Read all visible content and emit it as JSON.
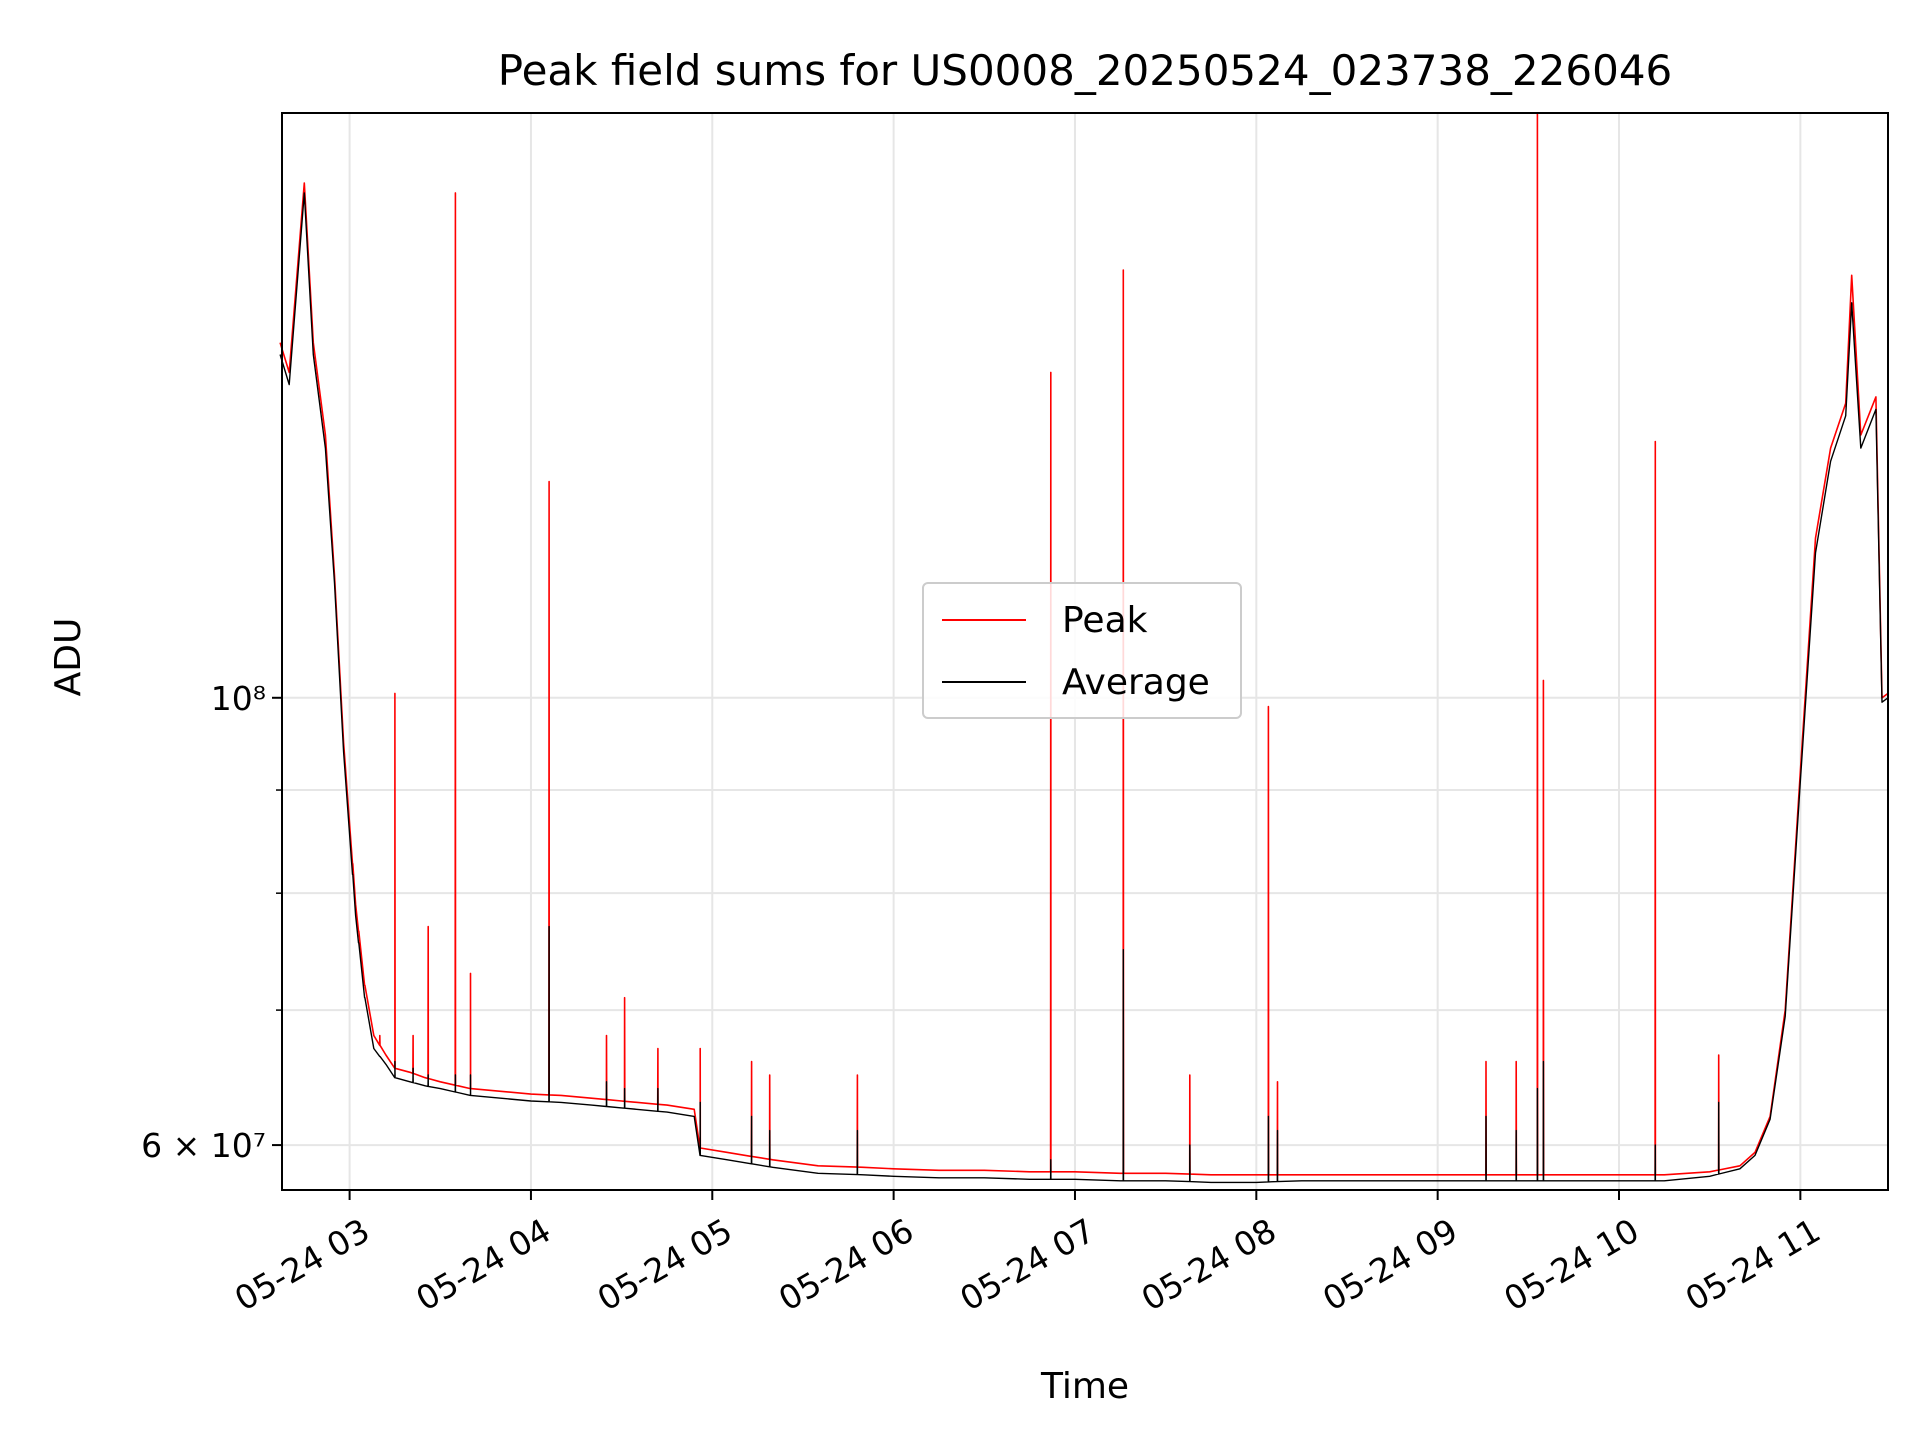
{
  "chart_data": {
    "type": "line",
    "title": "Peak field sums for US0008_20250524_023738_226046",
    "xlabel": "Time",
    "ylabel": "ADU",
    "x_axis": {
      "type": "time",
      "range": [
        "2025-05-24 02:37:38",
        "2025-05-24 11:29"
      ],
      "tick_labels": [
        "05-24 03",
        "05-24 04",
        "05-24 05",
        "05-24 06",
        "05-24 07",
        "05-24 08",
        "05-24 09",
        "05-24 10",
        "05-24 11"
      ]
    },
    "y_axis": {
      "scale": "log",
      "range": [
        57000000,
        195000000
      ],
      "major_tick_labels": [
        "6 × 10⁷",
        "10⁸"
      ],
      "major_ticks": [
        60000000,
        100000000
      ],
      "minor_ticks": [
        70000000,
        80000000,
        90000000
      ]
    },
    "grid": true,
    "legend": {
      "placement": "center"
    },
    "series": [
      {
        "name": "Peak",
        "color": "#ff0000",
        "x": [
          "02:37",
          "02:40",
          "02:45",
          "02:48",
          "02:52",
          "02:55",
          "02:58",
          "03:02",
          "03:05",
          "03:08",
          "03:12",
          "03:15",
          "03:20",
          "03:25",
          "03:30",
          "03:40",
          "03:50",
          "04:00",
          "04:10",
          "04:20",
          "04:30",
          "04:45",
          "04:54",
          "04:56",
          "05:05",
          "05:20",
          "05:35",
          "05:50",
          "06:00",
          "06:15",
          "06:30",
          "06:45",
          "07:00",
          "07:15",
          "07:30",
          "07:45",
          "08:00",
          "08:15",
          "08:30",
          "08:45",
          "09:00",
          "09:15",
          "09:30",
          "09:45",
          "10:00",
          "10:15",
          "10:30",
          "10:40",
          "10:45",
          "10:50",
          "10:55",
          "11:00",
          "11:05",
          "11:10",
          "11:15",
          "11:17",
          "11:20",
          "11:25",
          "11:27",
          "11:29"
        ],
        "y": [
          150000000,
          145000000,
          180000000,
          150000000,
          135000000,
          115000000,
          95000000,
          79000000,
          72000000,
          68000000,
          66500000,
          65500000,
          65200000,
          64800000,
          64500000,
          64000000,
          63800000,
          63600000,
          63500000,
          63300000,
          63100000,
          62800000,
          62500000,
          59800000,
          59500000,
          59000000,
          58600000,
          58500000,
          58400000,
          58300000,
          58300000,
          58200000,
          58200000,
          58100000,
          58100000,
          58000000,
          58000000,
          58000000,
          58000000,
          58000000,
          58000000,
          58000000,
          58000000,
          58000000,
          58000000,
          58000000,
          58200000,
          58600000,
          59500000,
          62000000,
          70000000,
          92000000,
          120000000,
          133000000,
          140000000,
          162000000,
          135000000,
          141000000,
          100000000,
          100500000
        ]
      },
      {
        "name": "Average",
        "color": "#000000",
        "x": [
          "02:37",
          "02:40",
          "02:45",
          "02:48",
          "02:52",
          "02:55",
          "02:58",
          "03:02",
          "03:05",
          "03:08",
          "03:12",
          "03:15",
          "03:20",
          "03:25",
          "03:30",
          "03:40",
          "03:50",
          "04:00",
          "04:10",
          "04:20",
          "04:30",
          "04:45",
          "04:54",
          "04:56",
          "05:05",
          "05:20",
          "05:35",
          "05:50",
          "06:00",
          "06:15",
          "06:30",
          "06:45",
          "07:00",
          "07:15",
          "07:30",
          "07:45",
          "08:00",
          "08:15",
          "08:30",
          "08:45",
          "09:00",
          "09:15",
          "09:30",
          "09:45",
          "10:00",
          "10:15",
          "10:30",
          "10:40",
          "10:45",
          "10:50",
          "10:55",
          "11:00",
          "11:05",
          "11:10",
          "11:15",
          "11:17",
          "11:20",
          "11:25",
          "11:27",
          "11:29"
        ],
        "y": [
          148000000,
          143000000,
          178000000,
          148000000,
          133000000,
          114000000,
          94000000,
          78000000,
          71000000,
          67000000,
          65800000,
          64800000,
          64500000,
          64200000,
          64000000,
          63500000,
          63300000,
          63100000,
          63000000,
          62800000,
          62600000,
          62300000,
          62000000,
          59300000,
          59000000,
          58500000,
          58100000,
          58000000,
          57900000,
          57800000,
          57800000,
          57700000,
          57700000,
          57600000,
          57600000,
          57500000,
          57500000,
          57600000,
          57600000,
          57600000,
          57600000,
          57600000,
          57600000,
          57600000,
          57600000,
          57600000,
          57900000,
          58400000,
          59300000,
          61800000,
          69500000,
          91000000,
          118000000,
          131000000,
          138000000,
          157000000,
          133000000,
          139000000,
          99500000,
          100000000
        ]
      }
    ],
    "spikes": [
      {
        "x": "03:01",
        "peak": 76000000,
        "average": 70000000
      },
      {
        "x": "03:03",
        "peak": 73000000,
        "average": 68000000
      },
      {
        "x": "03:05",
        "peak": 71000000,
        "average": 67000000
      },
      {
        "x": "03:10",
        "peak": 68000000,
        "average": 66000000
      },
      {
        "x": "03:15",
        "peak": 100500000,
        "average": 66000000
      },
      {
        "x": "03:21",
        "peak": 68000000,
        "average": 65500000
      },
      {
        "x": "03:26",
        "peak": 77000000,
        "average": 65000000
      },
      {
        "x": "03:35",
        "peak": 178000000,
        "average": 65000000
      },
      {
        "x": "03:40",
        "peak": 73000000,
        "average": 65000000
      },
      {
        "x": "04:06",
        "peak": 128000000,
        "average": 77000000
      },
      {
        "x": "04:25",
        "peak": 68000000,
        "average": 64500000
      },
      {
        "x": "04:31",
        "peak": 71000000,
        "average": 64000000
      },
      {
        "x": "04:42",
        "peak": 67000000,
        "average": 64000000
      },
      {
        "x": "04:56",
        "peak": 67000000,
        "average": 63000000
      },
      {
        "x": "05:13",
        "peak": 66000000,
        "average": 62000000
      },
      {
        "x": "05:19",
        "peak": 65000000,
        "average": 61000000
      },
      {
        "x": "05:48",
        "peak": 65000000,
        "average": 61000000
      },
      {
        "x": "06:52",
        "peak": 145000000,
        "average": 59000000
      },
      {
        "x": "07:16",
        "peak": 163000000,
        "average": 75000000
      },
      {
        "x": "07:38",
        "peak": 65000000,
        "average": 60000000
      },
      {
        "x": "08:04",
        "peak": 99000000,
        "average": 62000000
      },
      {
        "x": "08:07",
        "peak": 64500000,
        "average": 61000000
      },
      {
        "x": "09:16",
        "peak": 66000000,
        "average": 62000000
      },
      {
        "x": "09:26",
        "peak": 66000000,
        "average": 61000000
      },
      {
        "x": "09:33",
        "peak": 195000000,
        "average": 64000000
      },
      {
        "x": "09:35",
        "peak": 102000000,
        "average": 66000000
      },
      {
        "x": "10:12",
        "peak": 134000000,
        "average": 60000000
      },
      {
        "x": "10:33",
        "peak": 66500000,
        "average": 63000000
      }
    ]
  }
}
